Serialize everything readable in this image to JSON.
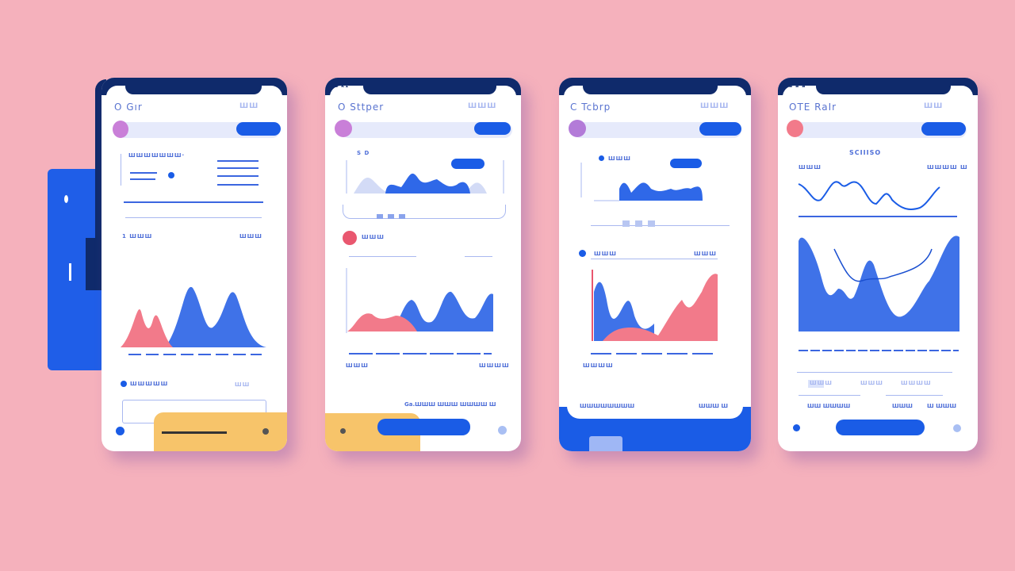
{
  "colors": {
    "background": "#f5b1bc",
    "primary": "#1a5ce6",
    "navy": "#0f2a6b",
    "coral": "#f27a8a",
    "yellow": "#f7c46a",
    "lavender": "#c97fd8"
  },
  "phones": [
    {
      "title": "O Gır",
      "status": "ШШ",
      "section1": "ШШШШШШШ·",
      "section2": "1 ШШШ",
      "section2_right": "ШШШ",
      "section3": "ШШШШШ",
      "section3_right": "ШШ"
    },
    {
      "title": "O Sttper",
      "status": "ШШШ",
      "carrier": "a k1",
      "section1": "S D",
      "section2": "ШШШ",
      "axis_left": "ШШШ",
      "axis_right": "ШШШШ",
      "footer": "Ga.ШШШ ШШШ ШШШШ Ш"
    },
    {
      "title": "C Tcbrp",
      "status": "ШШШ",
      "section1": "ШШШ",
      "section2": "ШШШ",
      "section2_right": "ШШШ",
      "axis_left": "ШШШШ",
      "footer_left": "ШШШШШШШШ",
      "footer_right": "ШШШ Ш"
    },
    {
      "title": "OTE RaIr",
      "status": "ШШ",
      "carrier": "a a a",
      "heading": "SCIIISO",
      "label_left": "ШШШ",
      "label_right": "ШШШШ Ш",
      "tab1": "ШШШ",
      "tab2": "ШШШ",
      "tab3": "ШШШШ",
      "footer1": "ШШ ШШШШ",
      "footer2": "ШШШ",
      "footer3": "Ш ШШШ"
    }
  ]
}
